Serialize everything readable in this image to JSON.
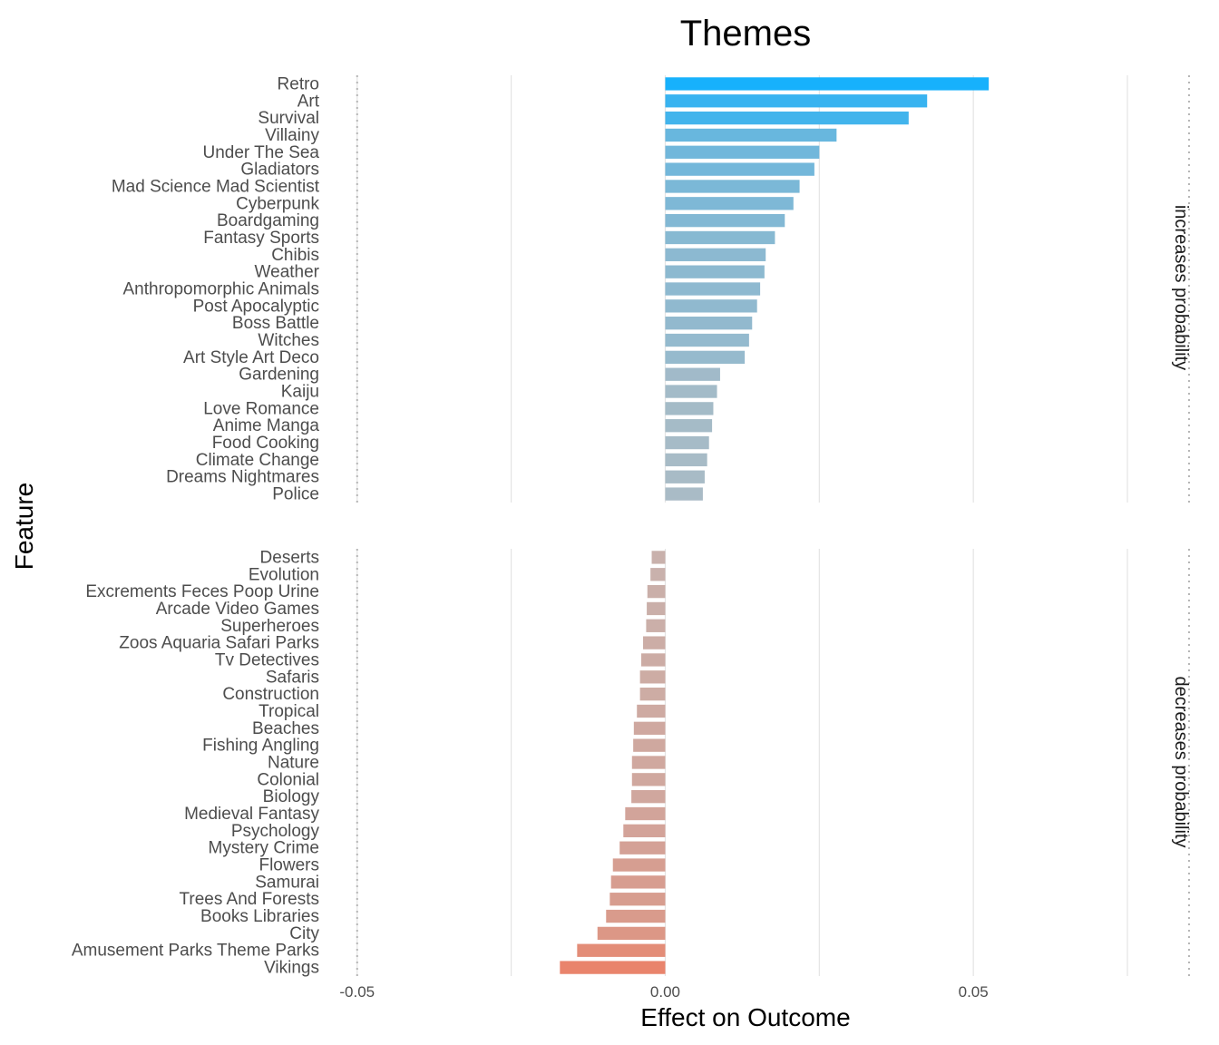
{
  "chart_data": {
    "type": "bar",
    "orientation": "horizontal",
    "title": "Themes",
    "xlabel": "Effect on Outcome",
    "ylabel": "Feature",
    "xlim": [
      -0.0535,
      0.0775
    ],
    "x_ticks": [
      {
        "value": -0.05,
        "label": "-0.05"
      },
      {
        "value": 0.0,
        "label": "0.00"
      },
      {
        "value": 0.05,
        "label": "0.05"
      }
    ],
    "reference_lines": [
      -0.05,
      0.085
    ],
    "grid": true,
    "facets": [
      {
        "name": "increases probability",
        "categories": [
          "Retro",
          "Art",
          "Survival",
          "Villainy",
          "Under The Sea",
          "Gladiators",
          "Mad Science Mad Scientist",
          "Cyberpunk",
          "Boardgaming",
          "Fantasy Sports",
          "Chibis",
          "Weather",
          "Anthropomorphic Animals",
          "Post Apocalyptic",
          "Boss Battle",
          "Witches",
          "Art Style Art Deco",
          "Gardening",
          "Kaiju",
          "Love Romance",
          "Anime Manga",
          "Food Cooking",
          "Climate Change",
          "Dreams Nightmares",
          "Police"
        ],
        "values": [
          0.0525,
          0.0425,
          0.0395,
          0.0278,
          0.025,
          0.0242,
          0.0218,
          0.0208,
          0.0194,
          0.0178,
          0.0163,
          0.0161,
          0.0154,
          0.0149,
          0.0141,
          0.0136,
          0.0129,
          0.0089,
          0.0084,
          0.0078,
          0.0076,
          0.0071,
          0.0068,
          0.0064,
          0.0061
        ]
      },
      {
        "name": "decreases probability",
        "categories": [
          "Deserts",
          "Evolution",
          "Excrements Feces Poop Urine",
          "Arcade Video Games",
          "Superheroes",
          "Zoos Aquaria Safari Parks",
          "Tv Detectives",
          "Safaris",
          "Construction",
          "Tropical",
          "Beaches",
          "Fishing Angling",
          "Nature",
          "Colonial",
          "Biology",
          "Medieval Fantasy",
          "Psychology",
          "Mystery Crime",
          "Flowers",
          "Samurai",
          "Trees And Forests",
          "Books Libraries",
          "City",
          "Amusement Parks Theme Parks",
          "Vikings"
        ],
        "values": [
          -0.0022,
          -0.0024,
          -0.0029,
          -0.003,
          -0.0031,
          -0.0036,
          -0.0039,
          -0.0041,
          -0.0041,
          -0.0046,
          -0.0051,
          -0.0052,
          -0.0054,
          -0.0054,
          -0.0055,
          -0.0065,
          -0.0068,
          -0.0074,
          -0.0085,
          -0.0088,
          -0.009,
          -0.0096,
          -0.011,
          -0.0143,
          -0.0171
        ]
      }
    ],
    "color_scale": {
      "positive_max": "#17b1fc",
      "neutral": "#b8bcc0",
      "negative_max": "#e9846c"
    }
  }
}
